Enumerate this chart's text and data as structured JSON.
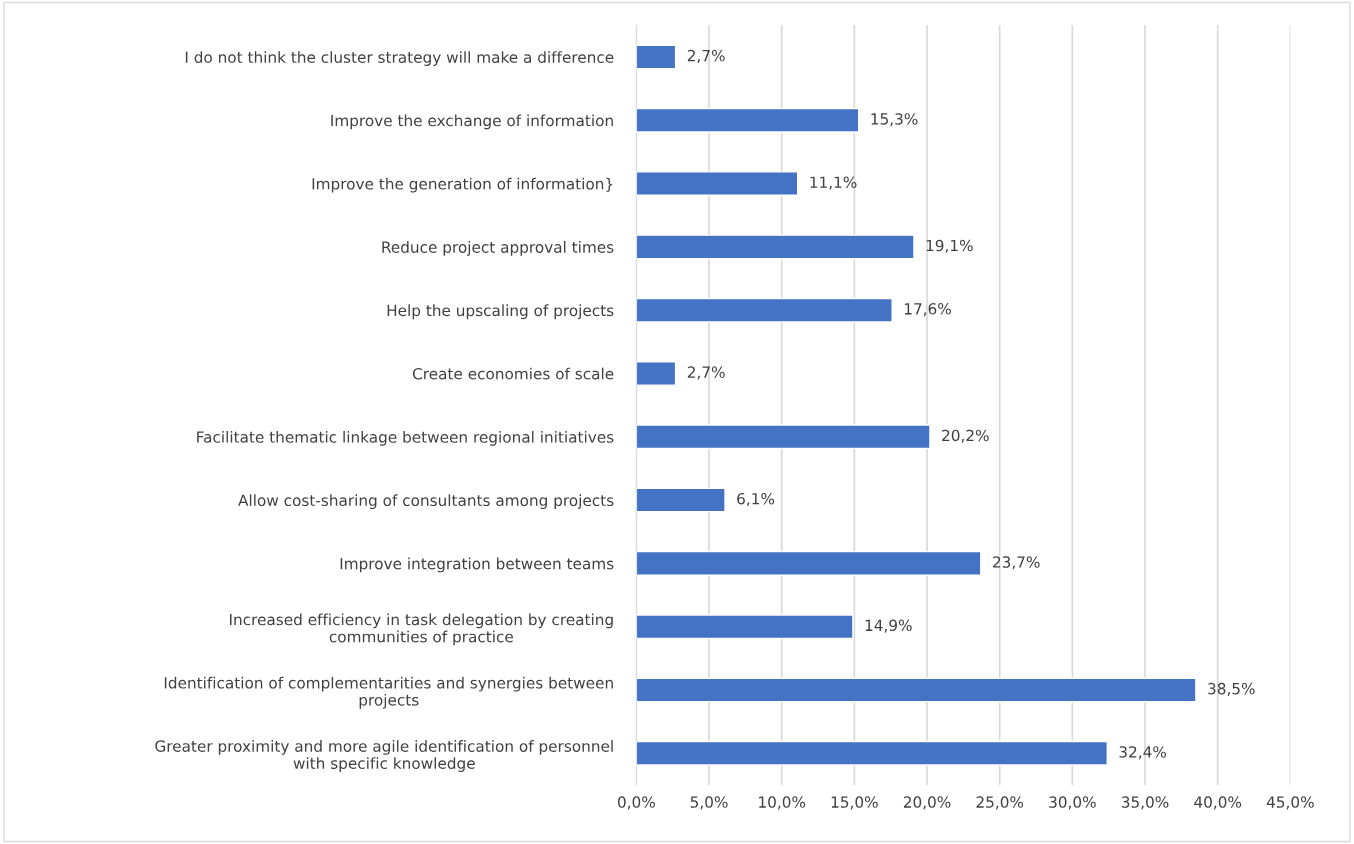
{
  "chart_data": {
    "type": "bar",
    "orientation": "horizontal",
    "categories": [
      "I do not think the cluster strategy will make a difference",
      "Improve the exchange of information",
      "Improve the generation of information}",
      "Reduce project approval times",
      "Help the upscaling of projects",
      "Create economies of scale",
      "Facilitate thematic linkage between regional initiatives",
      "Allow cost-sharing of consultants among projects",
      "Improve integration between teams",
      "Increased efficiency in task delegation by creating\ncommunities of practice",
      "Identification of complementarities and synergies between\nprojects",
      "Greater proximity and more agile identification of personnel\nwith specific knowledge"
    ],
    "values": [
      2.7,
      15.3,
      11.1,
      19.1,
      17.6,
      2.7,
      20.2,
      6.1,
      23.7,
      14.9,
      38.5,
      32.4
    ],
    "value_labels": [
      "2,7%",
      "15,3%",
      "11,1%",
      "19,1%",
      "17,6%",
      "2,7%",
      "20,2%",
      "6,1%",
      "23,7%",
      "14,9%",
      "38,5%",
      "32,4%"
    ],
    "color": "#4472c4",
    "xlim": [
      0,
      45
    ],
    "xticks": [
      {
        "value": 0,
        "label": "0,0%"
      },
      {
        "value": 5,
        "label": "5,0%"
      },
      {
        "value": 10,
        "label": "10,0%"
      },
      {
        "value": 15,
        "label": "15,0%"
      },
      {
        "value": 20,
        "label": "20,0%"
      },
      {
        "value": 25,
        "label": "25,0%"
      },
      {
        "value": 30,
        "label": "30,0%"
      },
      {
        "value": 35,
        "label": "35,0%"
      },
      {
        "value": 40,
        "label": "40,0%"
      },
      {
        "value": 45,
        "label": "45,0%"
      }
    ],
    "grid": "x"
  }
}
